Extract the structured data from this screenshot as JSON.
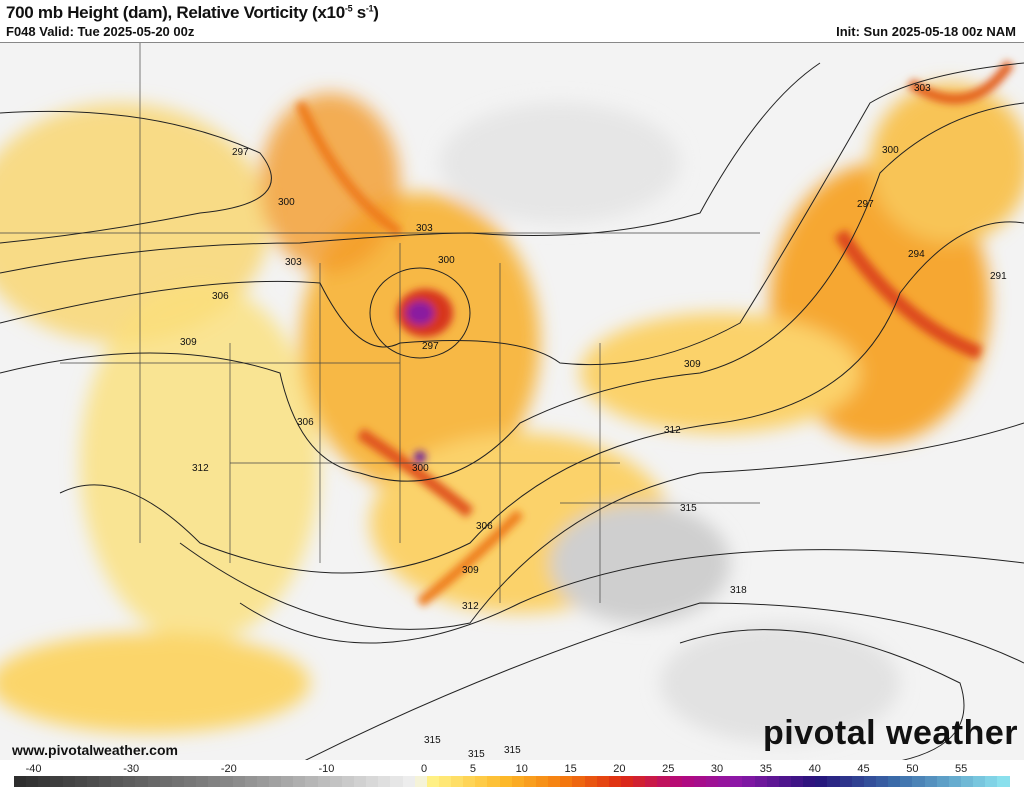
{
  "header": {
    "title": "700 mb Height (dam), Relative Vorticity (x10",
    "title_exp1": "-5",
    "title_mid": " s",
    "title_exp2": "-1",
    "title_end": ")",
    "valid": "F048 Valid: Tue 2025-05-20 00z",
    "init": "Init: Sun 2025-05-18 00z NAM"
  },
  "footer": {
    "website": "www.pivotalweather.com",
    "brand": "pivotal weather"
  },
  "map": {
    "contour_labels": [
      "297",
      "300",
      "303",
      "306",
      "309",
      "300",
      "297",
      "303",
      "306",
      "309",
      "312",
      "312",
      "315",
      "318",
      "306",
      "300",
      "300",
      "303",
      "297",
      "294",
      "291",
      "309",
      "312",
      "315",
      "315",
      "315"
    ],
    "vorticity_colors": {
      "negative": "#888888",
      "low": "#fbe27a",
      "mid": "#f39a1c",
      "high": "#d9441b",
      "extreme": "#8a1fa0"
    }
  },
  "colorbar": {
    "ticks": [
      "-40",
      "-30",
      "-20",
      "-10",
      "0",
      "5",
      "10",
      "15",
      "20",
      "25",
      "30",
      "35",
      "40",
      "45",
      "50",
      "55"
    ],
    "tick_values": [
      -40,
      -30,
      -20,
      -10,
      0,
      5,
      10,
      15,
      20,
      25,
      30,
      35,
      40,
      45,
      50,
      55
    ],
    "min": -42,
    "max": 60,
    "stops": [
      [
        -42,
        "#2e2e2e"
      ],
      [
        -20,
        "#8a8a8a"
      ],
      [
        -1,
        "#f2f2f2"
      ],
      [
        0,
        "#fff48a"
      ],
      [
        8,
        "#fdb829"
      ],
      [
        14,
        "#f47a0e"
      ],
      [
        20,
        "#dd2a12"
      ],
      [
        26,
        "#b4087c"
      ],
      [
        32,
        "#8b18a8"
      ],
      [
        40,
        "#25137a"
      ],
      [
        48,
        "#3a6aa8"
      ],
      [
        60,
        "#8fe8f2"
      ]
    ]
  }
}
